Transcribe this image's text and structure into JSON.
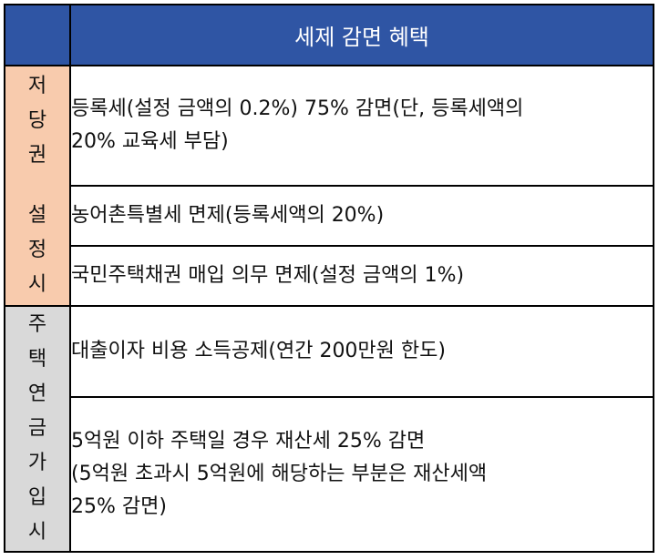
{
  "header": {
    "title": "세제 감면 혜택"
  },
  "groups": [
    {
      "label_lines": [
        "저당권",
        "설정시"
      ],
      "color": "#f8cbad",
      "items": [
        [
          "등록세(설정 금액의 0.2%) 75% 감면(단, 등록세액의",
          "20% 교육세 부담)"
        ],
        [
          "농어촌특별세 면제(등록세액의 20%)"
        ],
        [
          "국민주택채권 매입 의무 면제(설정 금액의 1%)"
        ]
      ]
    },
    {
      "label_lines": [
        "주택연금가입시"
      ],
      "color": "#d9d9d9",
      "items": [
        [
          "대출이자 비용 소득공제(연간 200만원 한도)"
        ],
        [
          "5억원 이하 주택일 경우 재산세 25% 감면",
          "(5억원 초과시 5억원에 해당하는 부분은 재산세액",
          "25% 감면)"
        ]
      ]
    }
  ],
  "colors": {
    "header_bg": "#2f55a4",
    "header_text": "#ffffff",
    "border": "#000000"
  }
}
